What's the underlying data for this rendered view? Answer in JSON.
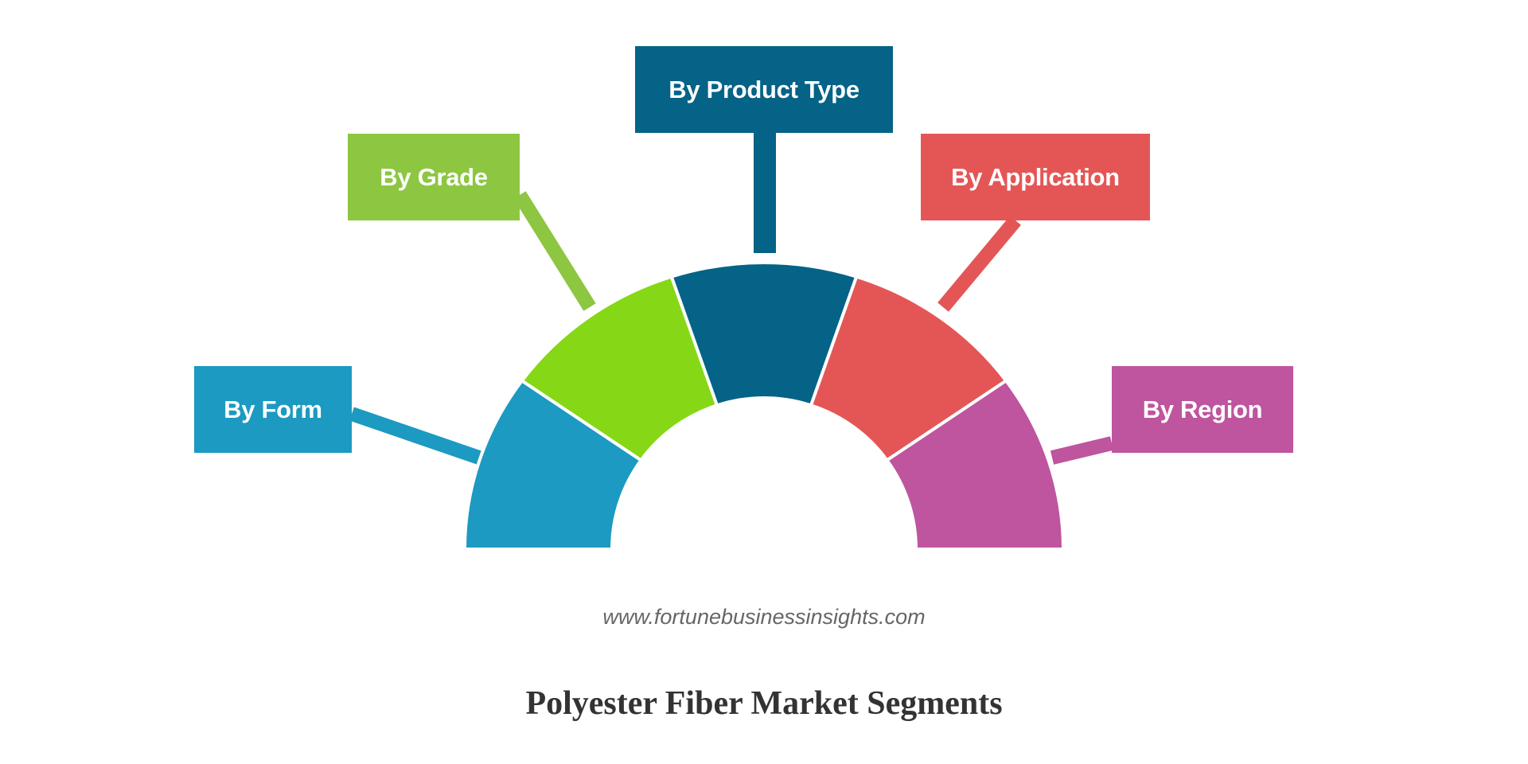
{
  "segments": [
    {
      "label": "By Form",
      "color": "#1c9ac1",
      "box_color": "#1c9ac1"
    },
    {
      "label": "By Grade",
      "color": "#86d816",
      "box_color": "#8dc641"
    },
    {
      "label": "By Product Type",
      "color": "#046386",
      "box_color": "#046386"
    },
    {
      "label": "By Application",
      "color": "#e45656",
      "box_color": "#e45656"
    },
    {
      "label": "By Region",
      "color": "#be559e",
      "box_color": "#be559e"
    }
  ],
  "source_url": "www.fortunebusinessinsights.com",
  "title": "Polyester Fiber Market Segments"
}
